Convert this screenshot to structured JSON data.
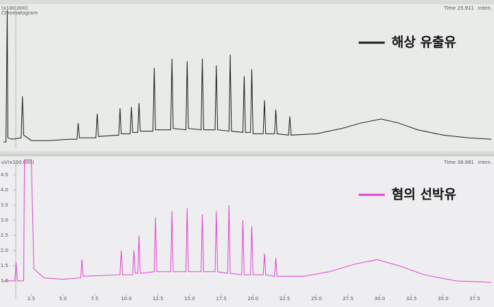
{
  "chart_data": [
    {
      "type": "line",
      "corner_label": "(x100,000)",
      "subtitle": "Chromatogram",
      "time_label": "Time  25.911",
      "axis_label": "Inten.",
      "xlim": [
        0.3,
        38.8
      ],
      "ylim": [
        0,
        10
      ],
      "series": [
        {
          "name": "해상 유출유",
          "color": "#1a1a1a",
          "x": [
            0.3,
            0.5,
            0.6,
            0.65,
            1.0,
            1.7,
            1.8,
            1.9,
            2.5,
            4,
            5.5,
            6.1,
            6.2,
            6.3,
            7.6,
            7.7,
            7.8,
            9.4,
            9.5,
            9.6,
            10.3,
            10.4,
            10.5,
            10.9,
            11.0,
            11.1,
            12.1,
            12.2,
            12.3,
            13.5,
            13.6,
            13.7,
            14.7,
            14.8,
            14.9,
            15.9,
            16.0,
            16.1,
            17.0,
            17.1,
            17.2,
            18.1,
            18.2,
            18.3,
            19.2,
            19.3,
            19.4,
            19.8,
            19.9,
            20.0,
            20.8,
            20.9,
            21.0,
            21.7,
            21.8,
            21.9,
            22.8,
            22.9,
            23.0,
            25,
            27,
            28.5,
            30.1,
            31.5,
            33,
            35,
            37,
            38.8
          ],
          "values": [
            0.2,
            0.2,
            10,
            0.5,
            0.4,
            0.5,
            3.6,
            0.7,
            0.3,
            0.3,
            0.4,
            0.4,
            1.6,
            0.5,
            0.5,
            2.3,
            0.6,
            0.7,
            2.7,
            0.8,
            0.8,
            2.8,
            0.9,
            0.9,
            3.1,
            1.0,
            1.0,
            5.7,
            1.1,
            1.1,
            6.4,
            1.2,
            1.1,
            6.2,
            1.2,
            1.1,
            6.4,
            1.1,
            1.1,
            5.9,
            1.1,
            1.0,
            6.7,
            1.0,
            0.9,
            5.1,
            0.9,
            0.9,
            5.6,
            0.8,
            0.8,
            3.3,
            0.8,
            0.8,
            2.6,
            0.8,
            0.7,
            2.1,
            0.7,
            0.8,
            1.2,
            1.6,
            1.9,
            1.6,
            1.1,
            0.7,
            0.5,
            0.4
          ]
        }
      ]
    },
    {
      "type": "line",
      "corner_label": "uV(x100,000)",
      "time_label": "Time  38.681",
      "axis_label": "Inten.",
      "xlim": [
        0.3,
        38.8
      ],
      "ylim": [
        0.5,
        5.0
      ],
      "yticks": [
        {
          "value": 1.0,
          "label": "1.0"
        },
        {
          "value": 1.5,
          "label": "1.5"
        },
        {
          "value": 2.0,
          "label": "2.0"
        },
        {
          "value": 2.5,
          "label": "2.5"
        },
        {
          "value": 3.0,
          "label": "3.0"
        },
        {
          "value": 3.5,
          "label": "3.5"
        },
        {
          "value": 4.0,
          "label": "4.0"
        },
        {
          "value": 4.5,
          "label": "4.5"
        }
      ],
      "xticks": [
        2.5,
        {
          "value": 5,
          "label": "5.0"
        },
        7.5,
        {
          "value": 10,
          "label": "10.0"
        },
        12.5,
        {
          "value": 15,
          "label": "15.0"
        },
        17.5,
        {
          "value": 20,
          "label": "20.0"
        },
        22.5,
        {
          "value": 25,
          "label": "25.0"
        },
        27.5,
        {
          "value": 30,
          "label": "30.0"
        },
        32.5,
        {
          "value": 35,
          "label": "35.0"
        },
        37.5
      ],
      "series": [
        {
          "name": "혐의 선박유",
          "color": "#e23fcf",
          "x": [
            0.3,
            1.2,
            1.3,
            1.4,
            1.9,
            1.96,
            2.5,
            2.7,
            3.5,
            5,
            6.4,
            6.5,
            6.6,
            9.5,
            9.6,
            9.7,
            10.5,
            10.6,
            10.7,
            10.9,
            11.0,
            11.1,
            12.2,
            12.3,
            12.4,
            13.5,
            13.6,
            13.7,
            14.7,
            14.8,
            14.9,
            15.9,
            16.0,
            16.1,
            17.0,
            17.1,
            17.2,
            18.0,
            18.1,
            18.2,
            19.1,
            19.2,
            19.3,
            19.8,
            19.9,
            20.0,
            20.8,
            20.9,
            21.0,
            21.7,
            21.8,
            21.9,
            24,
            26,
            28,
            29.8,
            31.5,
            33.5,
            36,
            38.8
          ],
          "values": [
            1.0,
            1.0,
            1.6,
            1.0,
            1.0,
            5.0,
            5.0,
            1.4,
            1.1,
            1.05,
            1.1,
            1.7,
            1.15,
            1.2,
            2.0,
            1.2,
            1.2,
            2.0,
            1.25,
            1.25,
            2.5,
            1.25,
            1.3,
            3.1,
            1.3,
            1.3,
            3.3,
            1.3,
            1.3,
            3.4,
            1.3,
            1.3,
            3.2,
            1.3,
            1.3,
            3.3,
            1.3,
            1.25,
            3.5,
            1.25,
            1.2,
            3.0,
            1.2,
            1.2,
            2.8,
            1.2,
            1.2,
            1.9,
            1.2,
            1.15,
            1.75,
            1.15,
            1.15,
            1.3,
            1.55,
            1.7,
            1.5,
            1.2,
            1.0,
            0.95
          ]
        }
      ]
    }
  ]
}
